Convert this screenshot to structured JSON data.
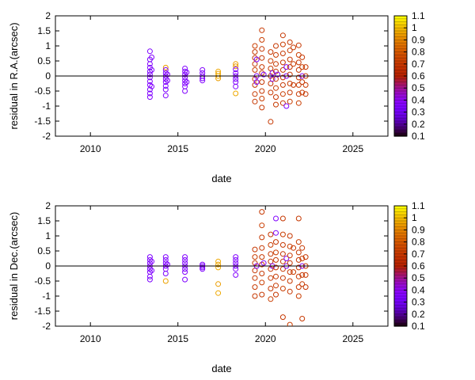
{
  "chart_data": [
    {
      "type": "scatter",
      "xlabel": "date",
      "ylabel": "residual in R.A.(arcsec)",
      "xlim": [
        2008,
        2027
      ],
      "ylim": [
        -2,
        2
      ],
      "x_ticks": [
        2010,
        2015,
        2020,
        2025
      ],
      "y_ticks": [
        -2,
        -1.5,
        -1,
        -0.5,
        0,
        0.5,
        1,
        1.5,
        2
      ],
      "zero_line": true,
      "grid": false,
      "marker": "open-circle",
      "colorbar": {
        "min": 0.1,
        "max": 1.1,
        "ticks": [
          0.1,
          0.2,
          0.3,
          0.4,
          0.5,
          0.6,
          0.7,
          0.8,
          0.9,
          1,
          1.1
        ],
        "colormap": "gnuplot-rgbformulae-7-5-15",
        "position": "right"
      },
      "points": [
        [
          2013.4,
          0.82,
          0.35
        ],
        [
          2013.4,
          0.55,
          0.33
        ],
        [
          2013.4,
          0.4,
          0.36
        ],
        [
          2013.4,
          0.28,
          0.34
        ],
        [
          2013.4,
          0.15,
          0.33
        ],
        [
          2013.4,
          0.05,
          0.35
        ],
        [
          2013.4,
          -0.05,
          0.34
        ],
        [
          2013.4,
          -0.18,
          0.36
        ],
        [
          2013.4,
          -0.3,
          0.35
        ],
        [
          2013.4,
          -0.45,
          0.34
        ],
        [
          2013.4,
          -0.58,
          0.35
        ],
        [
          2013.4,
          -0.7,
          0.36
        ],
        [
          2013.5,
          0.62,
          0.37
        ],
        [
          2013.5,
          0.2,
          0.36
        ],
        [
          2013.5,
          -0.35,
          0.37
        ],
        [
          2014.3,
          0.28,
          0.95
        ],
        [
          2014.3,
          0.2,
          0.35
        ],
        [
          2014.3,
          0.1,
          0.36
        ],
        [
          2014.3,
          0.0,
          0.34
        ],
        [
          2014.3,
          -0.1,
          0.35
        ],
        [
          2014.3,
          -0.2,
          0.36
        ],
        [
          2014.3,
          -0.33,
          0.35
        ],
        [
          2014.3,
          -0.45,
          0.34
        ],
        [
          2014.3,
          -0.65,
          0.36
        ],
        [
          2014.4,
          0.05,
          0.37
        ],
        [
          2014.4,
          -0.15,
          0.36
        ],
        [
          2015.4,
          0.25,
          0.36
        ],
        [
          2015.4,
          0.15,
          0.35
        ],
        [
          2015.4,
          0.05,
          0.36
        ],
        [
          2015.4,
          -0.05,
          0.34
        ],
        [
          2015.4,
          -0.15,
          0.35
        ],
        [
          2015.4,
          -0.25,
          0.36
        ],
        [
          2015.4,
          -0.35,
          0.37
        ],
        [
          2015.4,
          -0.5,
          0.36
        ],
        [
          2015.5,
          0.12,
          0.35
        ],
        [
          2015.5,
          -0.2,
          0.36
        ],
        [
          2016.4,
          0.2,
          0.36
        ],
        [
          2016.4,
          0.1,
          0.35
        ],
        [
          2016.4,
          0.0,
          0.36
        ],
        [
          2016.4,
          -0.08,
          0.34
        ],
        [
          2016.4,
          -0.15,
          0.36
        ],
        [
          2017.3,
          0.15,
          0.97
        ],
        [
          2017.3,
          0.08,
          0.96
        ],
        [
          2017.3,
          0.0,
          0.98
        ],
        [
          2017.3,
          -0.08,
          0.95
        ],
        [
          2018.3,
          0.4,
          0.95
        ],
        [
          2018.3,
          0.32,
          0.94
        ],
        [
          2018.3,
          0.22,
          0.36
        ],
        [
          2018.3,
          0.1,
          0.35
        ],
        [
          2018.3,
          0.0,
          0.36
        ],
        [
          2018.3,
          -0.1,
          0.34
        ],
        [
          2018.3,
          -0.2,
          0.35
        ],
        [
          2018.3,
          -0.35,
          0.36
        ],
        [
          2018.3,
          -0.58,
          0.97
        ],
        [
          2019.4,
          1.0,
          0.72
        ],
        [
          2019.4,
          0.8,
          0.7
        ],
        [
          2019.4,
          0.6,
          0.68
        ],
        [
          2019.4,
          0.4,
          0.7
        ],
        [
          2019.4,
          0.2,
          0.72
        ],
        [
          2019.4,
          -0.1,
          0.7
        ],
        [
          2019.4,
          -0.3,
          0.69
        ],
        [
          2019.4,
          -0.6,
          0.71
        ],
        [
          2019.4,
          -0.85,
          0.7
        ],
        [
          2019.5,
          0.55,
          0.35
        ],
        [
          2019.5,
          0.0,
          0.36
        ],
        [
          2019.5,
          -0.2,
          0.35
        ],
        [
          2019.8,
          1.52,
          0.7
        ],
        [
          2019.8,
          1.2,
          0.72
        ],
        [
          2019.8,
          0.9,
          0.7
        ],
        [
          2019.8,
          0.6,
          0.68
        ],
        [
          2019.8,
          0.3,
          0.7
        ],
        [
          2019.8,
          0.1,
          0.71
        ],
        [
          2019.8,
          -0.2,
          0.69
        ],
        [
          2019.8,
          -0.5,
          0.7
        ],
        [
          2019.8,
          -0.75,
          0.72
        ],
        [
          2019.8,
          -1.05,
          0.7
        ],
        [
          2019.9,
          0.05,
          0.36
        ],
        [
          2020.3,
          0.8,
          0.7
        ],
        [
          2020.3,
          0.5,
          0.72
        ],
        [
          2020.3,
          0.25,
          0.7
        ],
        [
          2020.3,
          0.0,
          0.69
        ],
        [
          2020.3,
          -0.25,
          0.7
        ],
        [
          2020.3,
          -0.55,
          0.71
        ],
        [
          2020.3,
          -1.52,
          0.7
        ],
        [
          2020.4,
          0.1,
          0.36
        ],
        [
          2020.4,
          -0.1,
          0.35
        ],
        [
          2020.6,
          1.0,
          0.7
        ],
        [
          2020.6,
          0.7,
          0.71
        ],
        [
          2020.6,
          0.4,
          0.7
        ],
        [
          2020.6,
          0.15,
          0.69
        ],
        [
          2020.6,
          -0.1,
          0.7
        ],
        [
          2020.6,
          -0.4,
          0.72
        ],
        [
          2020.6,
          -0.7,
          0.7
        ],
        [
          2020.6,
          -0.95,
          0.71
        ],
        [
          2020.7,
          0.05,
          0.36
        ],
        [
          2021.0,
          1.35,
          0.7
        ],
        [
          2021.0,
          1.05,
          0.72
        ],
        [
          2021.0,
          0.75,
          0.7
        ],
        [
          2021.0,
          0.45,
          0.69
        ],
        [
          2021.0,
          0.2,
          0.7
        ],
        [
          2021.0,
          -0.05,
          0.71
        ],
        [
          2021.0,
          -0.3,
          0.7
        ],
        [
          2021.0,
          -0.6,
          0.72
        ],
        [
          2021.0,
          -0.9,
          0.7
        ],
        [
          2021.2,
          0.3,
          0.36
        ],
        [
          2021.2,
          0.0,
          0.35
        ],
        [
          2021.2,
          -1.0,
          0.36
        ],
        [
          2021.4,
          1.12,
          0.7
        ],
        [
          2021.4,
          0.85,
          0.72
        ],
        [
          2021.4,
          0.55,
          0.7
        ],
        [
          2021.4,
          0.3,
          0.69
        ],
        [
          2021.4,
          0.05,
          0.7
        ],
        [
          2021.4,
          -0.25,
          0.71
        ],
        [
          2021.4,
          -0.55,
          0.7
        ],
        [
          2021.4,
          -0.85,
          0.72
        ],
        [
          2021.6,
          0.95,
          0.7
        ],
        [
          2021.6,
          0.4,
          0.72
        ],
        [
          2021.6,
          -0.3,
          0.7
        ],
        [
          2021.9,
          1.02,
          0.7
        ],
        [
          2021.9,
          0.7,
          0.72
        ],
        [
          2021.9,
          0.45,
          0.7
        ],
        [
          2021.9,
          0.2,
          0.69
        ],
        [
          2021.9,
          -0.05,
          0.7
        ],
        [
          2021.9,
          -0.3,
          0.71
        ],
        [
          2021.9,
          -0.6,
          0.7
        ],
        [
          2021.9,
          -0.9,
          0.72
        ],
        [
          2022.1,
          0.62,
          0.7
        ],
        [
          2022.1,
          0.3,
          0.72
        ],
        [
          2022.1,
          0.0,
          0.36
        ],
        [
          2022.1,
          -0.2,
          0.7
        ],
        [
          2022.1,
          -0.55,
          0.71
        ],
        [
          2022.3,
          0.3,
          0.7
        ],
        [
          2022.3,
          0.0,
          0.72
        ],
        [
          2022.3,
          -0.3,
          0.7
        ],
        [
          2022.3,
          -0.6,
          0.69
        ]
      ]
    },
    {
      "type": "scatter",
      "xlabel": "date",
      "ylabel": "residual in Dec.(arcsec)",
      "xlim": [
        2008,
        2027
      ],
      "ylim": [
        -2,
        2
      ],
      "x_ticks": [
        2010,
        2015,
        2020,
        2025
      ],
      "y_ticks": [
        -2,
        -1.5,
        -1,
        -0.5,
        0,
        0.5,
        1,
        1.5,
        2
      ],
      "zero_line": true,
      "grid": false,
      "marker": "open-circle",
      "colorbar": {
        "min": 0.1,
        "max": 1.1,
        "ticks": [
          0.1,
          0.2,
          0.3,
          0.4,
          0.5,
          0.6,
          0.7,
          0.8,
          0.9,
          1,
          1.1
        ],
        "colormap": "gnuplot-rgbformulae-7-5-15",
        "position": "right"
      },
      "points": [
        [
          2013.4,
          0.3,
          0.35
        ],
        [
          2013.4,
          0.2,
          0.34
        ],
        [
          2013.4,
          0.1,
          0.36
        ],
        [
          2013.4,
          0.0,
          0.35
        ],
        [
          2013.4,
          -0.1,
          0.34
        ],
        [
          2013.4,
          -0.2,
          0.36
        ],
        [
          2013.4,
          -0.35,
          0.35
        ],
        [
          2013.4,
          -0.45,
          0.34
        ],
        [
          2013.5,
          0.15,
          0.36
        ],
        [
          2013.5,
          -0.15,
          0.35
        ],
        [
          2014.3,
          0.3,
          0.35
        ],
        [
          2014.3,
          0.2,
          0.36
        ],
        [
          2014.3,
          0.1,
          0.34
        ],
        [
          2014.3,
          0.0,
          0.35
        ],
        [
          2014.3,
          -0.1,
          0.36
        ],
        [
          2014.3,
          -0.25,
          0.35
        ],
        [
          2014.3,
          -0.5,
          0.96
        ],
        [
          2014.4,
          0.05,
          0.36
        ],
        [
          2015.4,
          0.3,
          0.36
        ],
        [
          2015.4,
          0.2,
          0.35
        ],
        [
          2015.4,
          0.1,
          0.36
        ],
        [
          2015.4,
          0.0,
          0.34
        ],
        [
          2015.4,
          -0.1,
          0.35
        ],
        [
          2015.4,
          -0.2,
          0.36
        ],
        [
          2015.4,
          -0.45,
          0.35
        ],
        [
          2016.4,
          0.05,
          0.36
        ],
        [
          2016.4,
          0.0,
          0.35
        ],
        [
          2016.4,
          -0.05,
          0.36
        ],
        [
          2016.4,
          -0.1,
          0.34
        ],
        [
          2017.3,
          0.15,
          0.97
        ],
        [
          2017.3,
          0.05,
          0.96
        ],
        [
          2017.3,
          -0.05,
          0.98
        ],
        [
          2017.3,
          -0.6,
          0.95
        ],
        [
          2017.3,
          -0.9,
          0.97
        ],
        [
          2018.3,
          0.3,
          0.36
        ],
        [
          2018.3,
          0.2,
          0.35
        ],
        [
          2018.3,
          0.1,
          0.36
        ],
        [
          2018.3,
          0.0,
          0.34
        ],
        [
          2018.3,
          -0.1,
          0.35
        ],
        [
          2018.3,
          -0.3,
          0.36
        ],
        [
          2019.4,
          0.55,
          0.7
        ],
        [
          2019.4,
          0.3,
          0.72
        ],
        [
          2019.4,
          0.1,
          0.7
        ],
        [
          2019.4,
          -0.15,
          0.69
        ],
        [
          2019.4,
          -0.4,
          0.7
        ],
        [
          2019.4,
          -0.7,
          0.71
        ],
        [
          2019.4,
          -1.0,
          0.7
        ],
        [
          2019.5,
          0.0,
          0.36
        ],
        [
          2019.8,
          1.8,
          0.7
        ],
        [
          2019.8,
          1.35,
          0.72
        ],
        [
          2019.8,
          0.95,
          0.7
        ],
        [
          2019.8,
          0.6,
          0.69
        ],
        [
          2019.8,
          0.3,
          0.7
        ],
        [
          2019.8,
          0.05,
          0.71
        ],
        [
          2019.8,
          -0.25,
          0.7
        ],
        [
          2019.8,
          -0.55,
          0.72
        ],
        [
          2019.8,
          -0.95,
          0.7
        ],
        [
          2019.9,
          0.1,
          0.36
        ],
        [
          2020.3,
          1.05,
          0.7
        ],
        [
          2020.3,
          0.7,
          0.72
        ],
        [
          2020.3,
          0.4,
          0.7
        ],
        [
          2020.3,
          0.15,
          0.69
        ],
        [
          2020.3,
          -0.1,
          0.7
        ],
        [
          2020.3,
          -0.4,
          0.71
        ],
        [
          2020.3,
          -0.75,
          0.7
        ],
        [
          2020.3,
          -1.1,
          0.72
        ],
        [
          2020.4,
          0.0,
          0.36
        ],
        [
          2020.6,
          1.58,
          0.36
        ],
        [
          2020.6,
          1.1,
          0.36
        ],
        [
          2020.6,
          0.8,
          0.7
        ],
        [
          2020.6,
          0.45,
          0.72
        ],
        [
          2020.6,
          0.2,
          0.7
        ],
        [
          2020.6,
          -0.05,
          0.69
        ],
        [
          2020.6,
          -0.35,
          0.7
        ],
        [
          2020.6,
          -0.65,
          0.71
        ],
        [
          2020.6,
          -0.95,
          0.7
        ],
        [
          2021.0,
          1.58,
          0.7
        ],
        [
          2021.0,
          1.05,
          0.72
        ],
        [
          2021.0,
          0.7,
          0.7
        ],
        [
          2021.0,
          0.4,
          0.69
        ],
        [
          2021.0,
          0.15,
          0.7
        ],
        [
          2021.0,
          -0.1,
          0.71
        ],
        [
          2021.0,
          -0.4,
          0.7
        ],
        [
          2021.0,
          -0.75,
          0.72
        ],
        [
          2021.0,
          -1.7,
          0.7
        ],
        [
          2021.2,
          0.25,
          0.36
        ],
        [
          2021.2,
          0.0,
          0.35
        ],
        [
          2021.4,
          1.0,
          0.7
        ],
        [
          2021.4,
          0.65,
          0.72
        ],
        [
          2021.4,
          0.35,
          0.7
        ],
        [
          2021.4,
          0.1,
          0.69
        ],
        [
          2021.4,
          -0.2,
          0.7
        ],
        [
          2021.4,
          -0.5,
          0.71
        ],
        [
          2021.4,
          -0.85,
          0.7
        ],
        [
          2021.4,
          -1.95,
          0.72
        ],
        [
          2021.6,
          0.6,
          0.7
        ],
        [
          2021.6,
          -0.2,
          0.72
        ],
        [
          2021.9,
          1.58,
          0.7
        ],
        [
          2021.9,
          0.8,
          0.72
        ],
        [
          2021.9,
          0.45,
          0.7
        ],
        [
          2021.9,
          0.2,
          0.69
        ],
        [
          2021.9,
          -0.05,
          0.7
        ],
        [
          2021.9,
          -0.35,
          0.71
        ],
        [
          2021.9,
          -0.7,
          0.7
        ],
        [
          2021.9,
          -1.0,
          0.72
        ],
        [
          2022.1,
          0.6,
          0.7
        ],
        [
          2022.1,
          0.25,
          0.72
        ],
        [
          2022.1,
          0.0,
          0.36
        ],
        [
          2022.1,
          -0.3,
          0.7
        ],
        [
          2022.1,
          -0.6,
          0.71
        ],
        [
          2022.1,
          -1.75,
          0.7
        ],
        [
          2022.3,
          0.3,
          0.7
        ],
        [
          2022.3,
          0.0,
          0.72
        ],
        [
          2022.3,
          -0.3,
          0.7
        ],
        [
          2022.3,
          -0.7,
          0.69
        ]
      ]
    }
  ]
}
